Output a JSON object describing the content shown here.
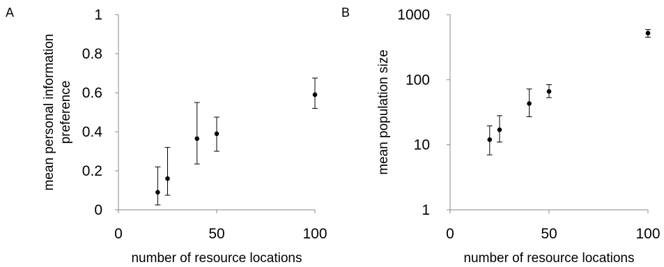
{
  "panels": {
    "a": {
      "label": "A"
    },
    "b": {
      "label": "B"
    }
  },
  "chart_data": [
    {
      "type": "scatter",
      "panel": "A",
      "xlabel": "number of resource locations",
      "ylabel": [
        "mean personal information",
        "preference"
      ],
      "xlim": [
        0,
        100
      ],
      "ylim": [
        0,
        1
      ],
      "xticks": [
        0,
        50,
        100
      ],
      "yticks": [
        0,
        0.2,
        0.4,
        0.6,
        0.8,
        1
      ],
      "ytick_labels": [
        "0",
        "0.2",
        "0.4",
        "0.6",
        "0.8",
        "1"
      ],
      "yscale": "linear",
      "grid": false,
      "points": [
        {
          "x": 20,
          "y": 0.09,
          "err_low": 0.025,
          "err_high": 0.22
        },
        {
          "x": 25,
          "y": 0.16,
          "err_low": 0.075,
          "err_high": 0.32
        },
        {
          "x": 40,
          "y": 0.365,
          "err_low": 0.235,
          "err_high": 0.55
        },
        {
          "x": 50,
          "y": 0.39,
          "err_low": 0.3,
          "err_high": 0.475
        },
        {
          "x": 100,
          "y": 0.59,
          "err_low": 0.52,
          "err_high": 0.675
        }
      ]
    },
    {
      "type": "scatter",
      "panel": "B",
      "xlabel": "number of resource locations",
      "ylabel": [
        "mean population size"
      ],
      "xlim": [
        0,
        100
      ],
      "ylim": [
        1,
        1000
      ],
      "xticks": [
        0,
        50,
        100
      ],
      "yticks": [
        1,
        10,
        100,
        1000
      ],
      "ytick_labels": [
        "1",
        "10",
        "100",
        "1000"
      ],
      "yscale": "log",
      "grid": false,
      "points": [
        {
          "x": 20,
          "y": 12,
          "err_low": 7,
          "err_high": 19.5
        },
        {
          "x": 25,
          "y": 17,
          "err_low": 11,
          "err_high": 28
        },
        {
          "x": 40,
          "y": 43,
          "err_low": 27,
          "err_high": 72
        },
        {
          "x": 50,
          "y": 66,
          "err_low": 53,
          "err_high": 84
        },
        {
          "x": 100,
          "y": 520,
          "err_low": 450,
          "err_high": 590
        }
      ]
    }
  ]
}
